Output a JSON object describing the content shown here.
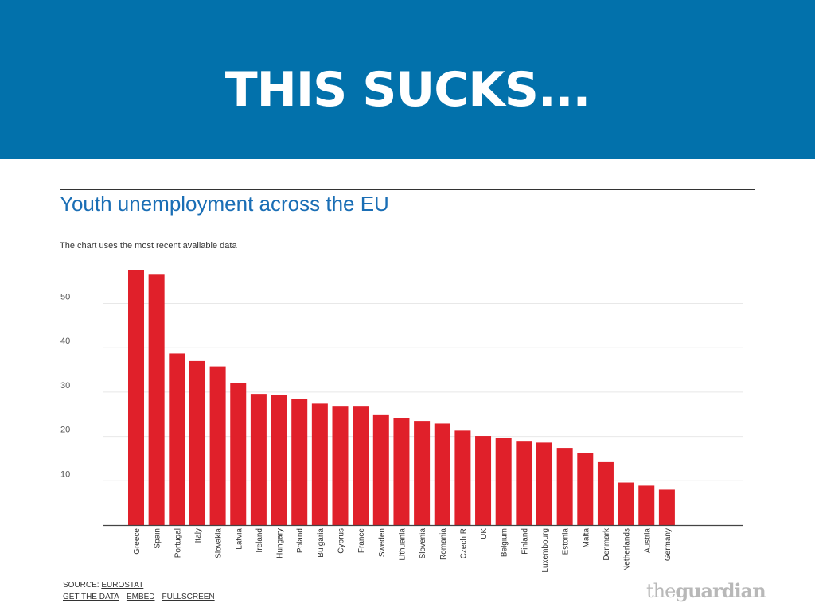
{
  "banner": {
    "title": "THIS SUCKS..."
  },
  "footer": {
    "source_prefix": "SOURCE: ",
    "source_link": "EUROSTAT",
    "get_data": "GET THE DATA",
    "embed": "EMBED",
    "fullscreen": "FULLSCREEN"
  },
  "logo": {
    "part1": "the",
    "part2": "guardian"
  },
  "colors": {
    "banner": "#0271ab",
    "bar": "#e0202a",
    "title": "#1a6eb5",
    "logo": "#b8b8b8"
  },
  "chart_data": {
    "type": "bar",
    "title": "Youth unemployment across the EU",
    "subtitle": "The chart uses the most recent available data",
    "xlabel": "",
    "ylabel": "",
    "ylim": [
      0,
      60
    ],
    "yticks": [
      10,
      20,
      30,
      40,
      50
    ],
    "grid": true,
    "categories": [
      "Greece",
      "Spain",
      "Portugal",
      "Italy",
      "Slovakia",
      "Latvia",
      "Ireland",
      "Hungary",
      "Poland",
      "Bulgaria",
      "Cyprus",
      "France",
      "Sweden",
      "Lithuania",
      "Slovenia",
      "Romania",
      "Czech R",
      "UK",
      "Belgium",
      "Finland",
      "Luxembourg",
      "Estonia",
      "Malta",
      "Denmark",
      "Netherlands",
      "Austria",
      "Germany"
    ],
    "values": [
      57.6,
      56.5,
      38.7,
      37.0,
      35.8,
      32.0,
      29.6,
      29.3,
      28.4,
      27.4,
      26.9,
      26.9,
      24.8,
      24.1,
      23.5,
      22.9,
      21.3,
      20.1,
      19.7,
      19.0,
      18.6,
      17.4,
      16.3,
      14.2,
      9.6,
      8.9,
      8.0
    ]
  }
}
